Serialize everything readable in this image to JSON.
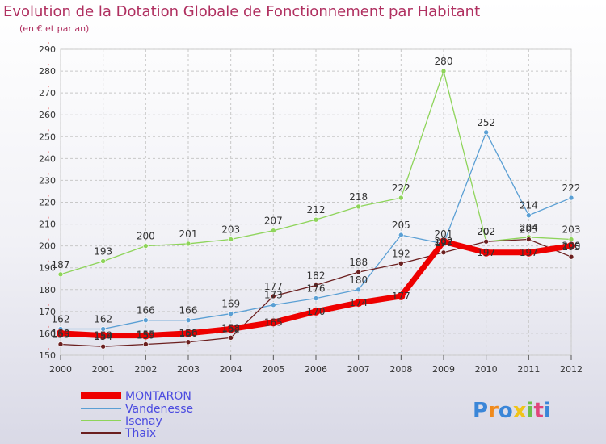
{
  "title": "Evolution de la Dotation Globale de Fonctionnement par Habitant",
  "subtitle": "(en € et par an)",
  "logo_text": "Proxiti",
  "chart_data": {
    "type": "line",
    "x": [
      "2000",
      "2001",
      "2002",
      "2003",
      "2004",
      "2005",
      "2006",
      "2007",
      "2008",
      "2009",
      "2010",
      "2011",
      "2012"
    ],
    "ylim": [
      150,
      290
    ],
    "yticks": [
      150,
      160,
      170,
      180,
      190,
      200,
      210,
      220,
      230,
      240,
      250,
      260,
      270,
      280,
      290
    ],
    "grid": true,
    "legend_position": "bottom-left",
    "series": [
      {
        "name": "MONTARON",
        "color": "#ee0000",
        "values": [
          160,
          159,
          159,
          160,
          162,
          165,
          170,
          174,
          177,
          202,
          197,
          197,
          200
        ]
      },
      {
        "name": "Vandenesse",
        "color": "#5a9fd4",
        "values": [
          162,
          162,
          166,
          166,
          169,
          173,
          176,
          180,
          205,
          201,
          252,
          214,
          222
        ]
      },
      {
        "name": "Isenay",
        "color": "#8ed45a",
        "values": [
          187,
          193,
          200,
          201,
          203,
          207,
          212,
          218,
          222,
          280,
          202,
          204,
          203
        ]
      },
      {
        "name": "Thaix",
        "color": "#6b1f1f",
        "values": [
          155,
          154,
          155,
          156,
          158,
          177,
          182,
          188,
          192,
          197,
          202,
          203,
          195
        ]
      }
    ]
  }
}
